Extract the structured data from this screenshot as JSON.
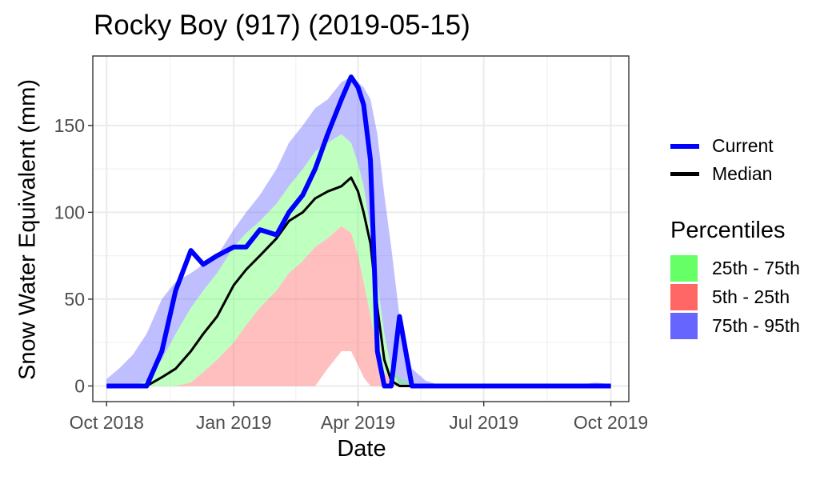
{
  "title": "Rocky Boy (917) (2019-05-15)",
  "colors": {
    "current": "#0000ff",
    "median": "#000000",
    "p25_75": "#66ff66",
    "p5_25": "#ff6666",
    "p75_95": "#6666ff"
  },
  "legend": {
    "line_items": [
      {
        "label": "Current",
        "color": "#0000ff",
        "icon": "blue-line"
      },
      {
        "label": "Median",
        "color": "#000000",
        "icon": "black-line"
      }
    ],
    "percentiles_title": "Percentiles",
    "fill_items": [
      {
        "label": "25th - 75th",
        "color": "#66ff66"
      },
      {
        "label": "5th - 25th",
        "color": "#ff6666"
      },
      {
        "label": "75th - 95th",
        "color": "#6666ff"
      }
    ]
  },
  "chart_data": {
    "type": "area",
    "title": "Rocky Boy (917) (2019-05-15)",
    "xlabel": "Date",
    "ylabel": "Snow Water Equivalent (mm)",
    "xlim": [
      "2018-09-21",
      "2019-10-14"
    ],
    "ylim": [
      -9,
      190
    ],
    "x_ticks": [
      {
        "date": "2018-10-01",
        "label": "Oct 2018"
      },
      {
        "date": "2019-01-01",
        "label": "Jan 2019"
      },
      {
        "date": "2019-04-01",
        "label": "Apr 2019"
      },
      {
        "date": "2019-07-01",
        "label": "Jul 2019"
      },
      {
        "date": "2019-10-01",
        "label": "Oct 2019"
      }
    ],
    "y_ticks": [
      0,
      50,
      100,
      150
    ],
    "grid": true,
    "legend_position": "right",
    "x": [
      "2018-10-01",
      "2018-10-10",
      "2018-10-20",
      "2018-10-30",
      "2018-11-10",
      "2018-11-20",
      "2018-12-01",
      "2018-12-10",
      "2018-12-20",
      "2019-01-01",
      "2019-01-10",
      "2019-01-20",
      "2019-02-01",
      "2019-02-10",
      "2019-02-20",
      "2019-03-01",
      "2019-03-10",
      "2019-03-20",
      "2019-03-27",
      "2019-04-01",
      "2019-04-05",
      "2019-04-10",
      "2019-04-15",
      "2019-04-20",
      "2019-04-25",
      "2019-05-01",
      "2019-05-10",
      "2019-05-20",
      "2019-06-01",
      "2019-06-10",
      "2019-06-20",
      "2019-07-01",
      "2019-08-01",
      "2019-09-01",
      "2019-09-20",
      "2019-10-01"
    ],
    "series": [
      {
        "name": "75th - 95th",
        "kind": "band",
        "low": [
          0,
          0,
          0,
          3,
          15,
          30,
          45,
          55,
          65,
          80,
          88,
          95,
          105,
          115,
          125,
          135,
          140,
          145,
          140,
          128,
          115,
          90,
          60,
          30,
          10,
          0,
          0,
          0,
          0,
          0,
          0,
          0,
          0,
          0,
          0,
          0
        ],
        "high": [
          4,
          10,
          18,
          30,
          50,
          60,
          65,
          70,
          75,
          90,
          100,
          110,
          125,
          140,
          150,
          160,
          165,
          175,
          178,
          175,
          172,
          165,
          145,
          110,
          80,
          40,
          10,
          3,
          0,
          0,
          0,
          0,
          0,
          0,
          2,
          1
        ]
      },
      {
        "name": "25th - 75th",
        "kind": "band",
        "low": [
          0,
          0,
          0,
          0,
          0,
          0,
          2,
          8,
          15,
          25,
          35,
          45,
          55,
          65,
          72,
          80,
          85,
          92,
          88,
          75,
          60,
          40,
          20,
          8,
          3,
          0,
          0,
          0,
          0,
          0,
          0,
          0,
          0,
          0,
          0,
          0
        ],
        "high": [
          0,
          0,
          0,
          3,
          15,
          30,
          45,
          55,
          65,
          80,
          88,
          95,
          105,
          115,
          125,
          135,
          140,
          145,
          140,
          128,
          115,
          90,
          60,
          30,
          10,
          5,
          1,
          0,
          0,
          0,
          0,
          0,
          0,
          0,
          0,
          0
        ]
      },
      {
        "name": "5th - 25th",
        "kind": "band",
        "low": [
          0,
          0,
          0,
          0,
          0,
          0,
          0,
          0,
          0,
          0,
          0,
          0,
          0,
          0,
          0,
          0,
          10,
          20,
          20,
          12,
          5,
          0,
          0,
          0,
          0,
          0,
          0,
          0,
          0,
          0,
          0,
          0,
          0,
          0,
          0,
          0
        ],
        "high": [
          0,
          0,
          0,
          0,
          0,
          0,
          2,
          8,
          15,
          25,
          35,
          45,
          55,
          65,
          72,
          80,
          85,
          92,
          88,
          75,
          60,
          40,
          20,
          8,
          3,
          0,
          0,
          0,
          0,
          0,
          0,
          0,
          0,
          0,
          0,
          0
        ]
      },
      {
        "name": "Median",
        "kind": "line",
        "values": [
          0,
          0,
          0,
          0,
          5,
          10,
          20,
          30,
          40,
          58,
          67,
          75,
          85,
          95,
          100,
          108,
          112,
          115,
          120,
          112,
          100,
          82,
          45,
          15,
          3,
          0,
          0,
          0,
          0,
          0,
          0,
          0,
          0,
          0,
          0,
          0
        ]
      },
      {
        "name": "Current",
        "kind": "line",
        "values": [
          0,
          0,
          0,
          0,
          20,
          55,
          78,
          70,
          75,
          80,
          80,
          90,
          87,
          100,
          110,
          125,
          145,
          165,
          178,
          172,
          162,
          130,
          20,
          0,
          0,
          40,
          0,
          0,
          0,
          0,
          0,
          0,
          0,
          0,
          0,
          0
        ]
      }
    ]
  }
}
